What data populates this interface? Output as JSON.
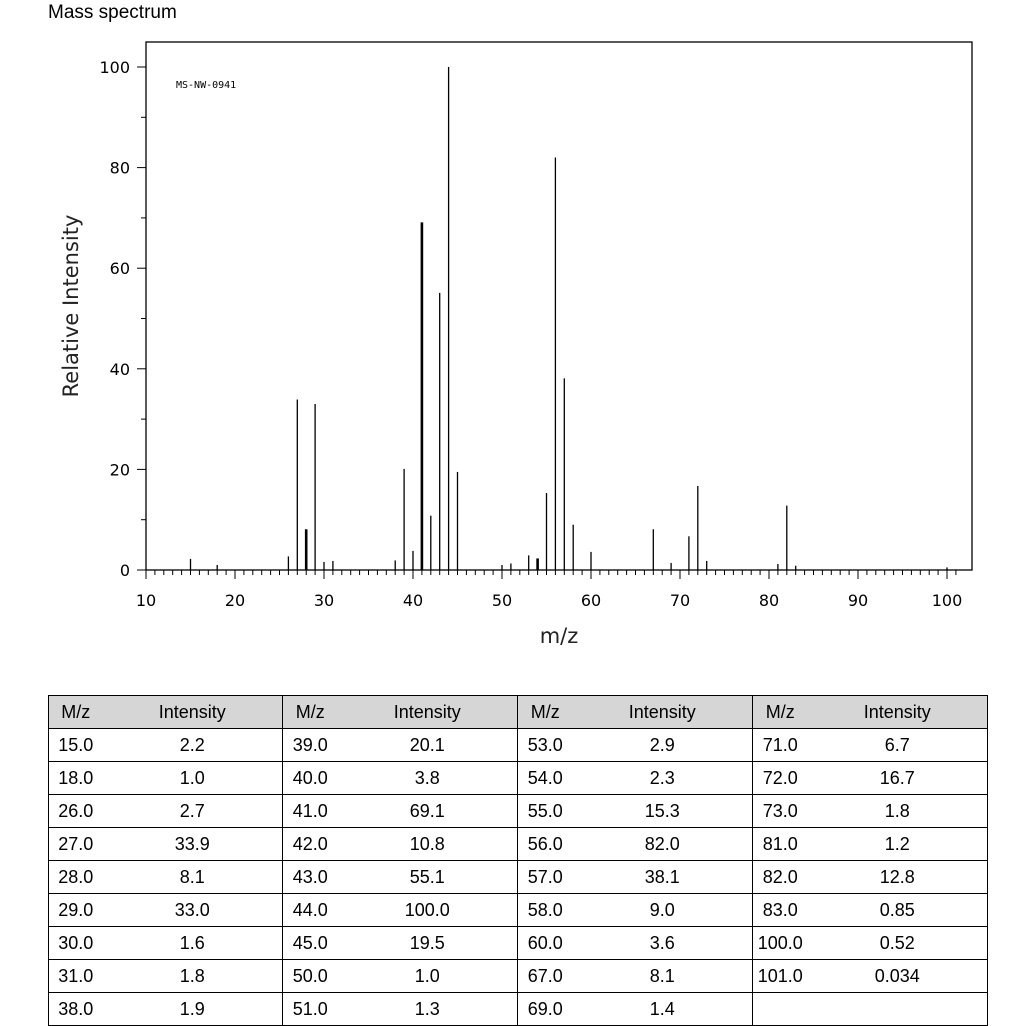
{
  "page": {
    "title": "Mass spectrum"
  },
  "chart_data": {
    "type": "bar",
    "title": "",
    "annotation": "MS-NW-0941",
    "xlabel": "m/z",
    "ylabel": "Relative Intensity",
    "xlim": [
      10,
      101
    ],
    "ylim": [
      0,
      100
    ],
    "xticks": [
      10,
      20,
      30,
      40,
      50,
      60,
      70,
      80,
      90,
      100
    ],
    "yticks": [
      0,
      20,
      40,
      60,
      80,
      100
    ],
    "grid": false,
    "peaks": [
      {
        "mz": 15,
        "intensity": 2.2
      },
      {
        "mz": 18,
        "intensity": 1.0
      },
      {
        "mz": 26,
        "intensity": 2.7
      },
      {
        "mz": 27,
        "intensity": 33.9
      },
      {
        "mz": 28,
        "intensity": 8.1
      },
      {
        "mz": 29,
        "intensity": 33.0
      },
      {
        "mz": 30,
        "intensity": 1.6
      },
      {
        "mz": 31,
        "intensity": 1.8
      },
      {
        "mz": 38,
        "intensity": 1.9
      },
      {
        "mz": 39,
        "intensity": 20.1
      },
      {
        "mz": 40,
        "intensity": 3.8
      },
      {
        "mz": 41,
        "intensity": 69.1
      },
      {
        "mz": 42,
        "intensity": 10.8
      },
      {
        "mz": 43,
        "intensity": 55.1
      },
      {
        "mz": 44,
        "intensity": 100.0
      },
      {
        "mz": 45,
        "intensity": 19.5
      },
      {
        "mz": 50,
        "intensity": 1.0
      },
      {
        "mz": 51,
        "intensity": 1.3
      },
      {
        "mz": 53,
        "intensity": 2.9
      },
      {
        "mz": 54,
        "intensity": 2.3
      },
      {
        "mz": 55,
        "intensity": 15.3
      },
      {
        "mz": 56,
        "intensity": 82.0
      },
      {
        "mz": 57,
        "intensity": 38.1
      },
      {
        "mz": 58,
        "intensity": 9.0
      },
      {
        "mz": 60,
        "intensity": 3.6
      },
      {
        "mz": 67,
        "intensity": 8.1
      },
      {
        "mz": 69,
        "intensity": 1.4
      },
      {
        "mz": 71,
        "intensity": 6.7
      },
      {
        "mz": 72,
        "intensity": 16.7
      },
      {
        "mz": 73,
        "intensity": 1.8
      },
      {
        "mz": 81,
        "intensity": 1.2
      },
      {
        "mz": 82,
        "intensity": 12.8
      },
      {
        "mz": 83,
        "intensity": 0.85
      },
      {
        "mz": 100,
        "intensity": 0.52
      },
      {
        "mz": 101,
        "intensity": 0.034
      }
    ]
  },
  "table": {
    "headers": [
      "M/z",
      "Intensity",
      "M/z",
      "Intensity",
      "M/z",
      "Intensity",
      "M/z",
      "Intensity"
    ],
    "rows": [
      [
        "15.0",
        "2.2",
        "39.0",
        "20.1",
        "53.0",
        "2.9",
        "71.0",
        "6.7"
      ],
      [
        "18.0",
        "1.0",
        "40.0",
        "3.8",
        "54.0",
        "2.3",
        "72.0",
        "16.7"
      ],
      [
        "26.0",
        "2.7",
        "41.0",
        "69.1",
        "55.0",
        "15.3",
        "73.0",
        "1.8"
      ],
      [
        "27.0",
        "33.9",
        "42.0",
        "10.8",
        "56.0",
        "82.0",
        "81.0",
        "1.2"
      ],
      [
        "28.0",
        "8.1",
        "43.0",
        "55.1",
        "57.0",
        "38.1",
        "82.0",
        "12.8"
      ],
      [
        "29.0",
        "33.0",
        "44.0",
        "100.0",
        "58.0",
        "9.0",
        "83.0",
        "0.85"
      ],
      [
        "30.0",
        "1.6",
        "45.0",
        "19.5",
        "60.0",
        "3.6",
        "100.0",
        "0.52"
      ],
      [
        "31.0",
        "1.8",
        "50.0",
        "1.0",
        "67.0",
        "8.1",
        "101.0",
        "0.034"
      ],
      [
        "38.0",
        "1.9",
        "51.0",
        "1.3",
        "69.0",
        "1.4",
        "",
        ""
      ]
    ]
  }
}
